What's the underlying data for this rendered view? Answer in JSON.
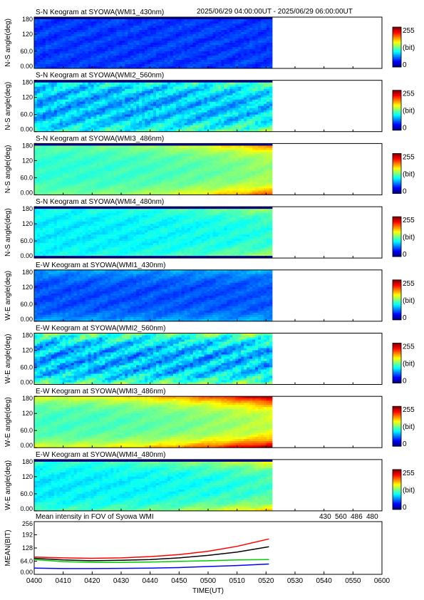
{
  "header": {
    "time_range": "2025/06/29 04:00:00UT - 2025/06/29 06:00:00UT"
  },
  "colors": {
    "series_430": "#0000ff",
    "series_560": "#00cc00",
    "series_486": "#ff0000",
    "series_480": "#000000"
  },
  "colorbar": {
    "max_label": "255",
    "unit_label": "(bit)",
    "min_label": "0"
  },
  "keograms": [
    {
      "title": "S-N Keogram at SYOWA(WMI1_430nm)",
      "ylabel": "N-S angle(deg)",
      "base_level": 0.18,
      "edge_rise": 0.0,
      "mottle": 0.04,
      "top_dark": true,
      "bottom_dark": false,
      "rim_bright": 0.0
    },
    {
      "title": "S-N Keogram at SYOWA(WMI2_560nm)",
      "ylabel": "N-S angle(deg)",
      "base_level": 0.3,
      "edge_rise": 0.1,
      "mottle": 0.1,
      "top_dark": true,
      "bottom_dark": false,
      "rim_bright": 0.12
    },
    {
      "title": "S-N Keogram at SYOWA(WMI3_486nm)",
      "ylabel": "N-S angle(deg)",
      "base_level": 0.42,
      "edge_rise": 0.3,
      "mottle": 0.03,
      "top_dark": true,
      "bottom_dark": false,
      "rim_bright": 0.08
    },
    {
      "title": "S-N Keogram at SYOWA(WMI4_480nm)",
      "ylabel": "N-S angle(deg)",
      "base_level": 0.36,
      "edge_rise": 0.16,
      "mottle": 0.04,
      "top_dark": true,
      "bottom_dark": true,
      "rim_bright": 0.05
    },
    {
      "title": "E-W Keogram at SYOWA(WMI1_430nm)",
      "ylabel": "W-E angle(deg)",
      "base_level": 0.2,
      "edge_rise": 0.02,
      "mottle": 0.04,
      "top_dark": false,
      "bottom_dark": false,
      "rim_bright": 0.1
    },
    {
      "title": "E-W Keogram at SYOWA(WMI2_560nm)",
      "ylabel": "W-E angle(deg)",
      "base_level": 0.3,
      "edge_rise": 0.05,
      "mottle": 0.12,
      "top_dark": false,
      "bottom_dark": false,
      "rim_bright": 0.2
    },
    {
      "title": "E-W Keogram at SYOWA(WMI3_486nm)",
      "ylabel": "W-E angle(deg)",
      "base_level": 0.44,
      "edge_rise": 0.38,
      "mottle": 0.03,
      "top_dark": false,
      "bottom_dark": false,
      "rim_bright": 0.18
    },
    {
      "title": "E-W Keogram at SYOWA(WMI4_480nm)",
      "ylabel": "W-E angle(deg)",
      "base_level": 0.36,
      "edge_rise": 0.22,
      "mottle": 0.04,
      "top_dark": true,
      "bottom_dark": false,
      "rim_bright": 0.1
    }
  ],
  "keogram_yticks": [
    "180",
    "120",
    "60.0",
    "0.00"
  ],
  "keogram_yvalues": [
    180,
    120,
    60,
    0
  ],
  "chart_data": {
    "type": "line",
    "title": "Mean intensity in FOV of Syowa WMI",
    "xlabel": "TIME(UT)",
    "ylabel": "MEAN(BIT)",
    "ylim": [
      0,
      256
    ],
    "xlim": [
      0,
      120
    ],
    "data_end_x": 81,
    "xtick_labels": [
      "0400",
      "0410",
      "0420",
      "0430",
      "0440",
      "0450",
      "0500",
      "0510",
      "0520",
      "0530",
      "0540",
      "0550",
      "0600"
    ],
    "ytick_labels": [
      "256",
      "192",
      "128",
      "64.0",
      "0.00"
    ],
    "ytick_values": [
      256,
      192,
      128,
      64,
      0
    ],
    "legend": [
      "430",
      "560",
      "486",
      "480"
    ],
    "series": [
      {
        "name": "430",
        "color": "#0000ff",
        "x": [
          0,
          10,
          20,
          30,
          40,
          50,
          60,
          70,
          81
        ],
        "values": [
          30,
          28,
          28,
          29,
          30,
          33,
          38,
          43,
          50
        ]
      },
      {
        "name": "560",
        "color": "#00cc00",
        "x": [
          0,
          10,
          20,
          30,
          40,
          50,
          60,
          70,
          81
        ],
        "values": [
          72,
          62,
          58,
          58,
          60,
          63,
          66,
          70,
          72
        ]
      },
      {
        "name": "486",
        "color": "#ff0000",
        "x": [
          0,
          10,
          20,
          30,
          40,
          50,
          60,
          70,
          81
        ],
        "values": [
          84,
          80,
          78,
          80,
          86,
          96,
          112,
          136,
          172
        ]
      },
      {
        "name": "480",
        "color": "#000000",
        "x": [
          0,
          10,
          20,
          30,
          40,
          50,
          60,
          70,
          81
        ],
        "values": [
          78,
          70,
          66,
          68,
          72,
          80,
          92,
          108,
          134
        ]
      }
    ]
  }
}
